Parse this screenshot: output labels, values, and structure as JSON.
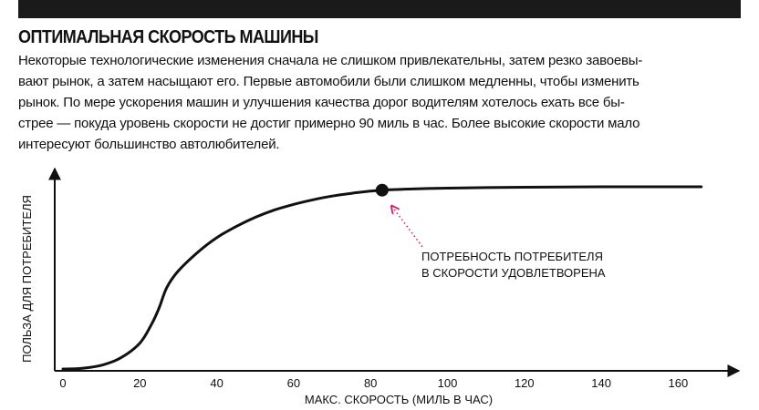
{
  "article": {
    "title": "ОПТИМАЛЬНАЯ СКОРОСТЬ МАШИНЫ",
    "intro_lines": [
      "Некоторые технологические изменения сначала не слишком привлекательны, затем резко завоевы-",
      "вают рынок, а затем насыщают его. Первые автомобили были слишком медленны, чтобы изменить",
      "рынок. По мере ускорения машин и улучшения качества дорог водителям хотелось ехать все бы-",
      "стрее — покуда уровень скорости не достиг примерно 90 миль в час. Более высокие скорости мало",
      "интересуют большинство автолюбителей."
    ]
  },
  "colors": {
    "ink": "#111111",
    "bar": "#1a1a1a",
    "annotation_arrow": "#d6246e"
  },
  "chart_data": {
    "type": "line",
    "xlabel": "МАКС. СКОРОСТЬ (МИЛЬ В ЧАС)",
    "ylabel": "ПОЛЬЗА ДЛЯ ПОТРЕБИТЕЛЯ",
    "x_ticks": [
      0,
      20,
      40,
      60,
      80,
      100,
      120,
      140,
      160
    ],
    "xlim": [
      0,
      165
    ],
    "ylim": [
      0,
      1
    ],
    "y_ticks_shown": false,
    "grid": false,
    "series": [
      {
        "x": [
          0,
          5,
          10,
          15,
          20,
          23,
          25,
          27,
          30,
          35,
          40,
          45,
          50,
          55,
          60,
          65,
          70,
          75,
          80,
          83,
          90,
          100,
          110,
          120,
          130,
          140,
          150,
          160,
          166
        ],
        "y": [
          0,
          0.004,
          0.02,
          0.06,
          0.14,
          0.24,
          0.33,
          0.44,
          0.53,
          0.63,
          0.71,
          0.77,
          0.82,
          0.86,
          0.89,
          0.915,
          0.935,
          0.95,
          0.962,
          0.967,
          0.973,
          0.978,
          0.981,
          0.983,
          0.984,
          0.985,
          0.985,
          0.985,
          0.985
        ]
      }
    ],
    "highlight_point": {
      "x": 83,
      "y": 0.967
    },
    "annotation": {
      "lines": [
        "ПОТРЕБНОСТЬ ПОТРЕБИТЕЛЯ",
        "В СКОРОСТИ УДОВЛЕТВОРЕНА"
      ],
      "target": {
        "x": 83,
        "y": 0.967
      }
    }
  }
}
